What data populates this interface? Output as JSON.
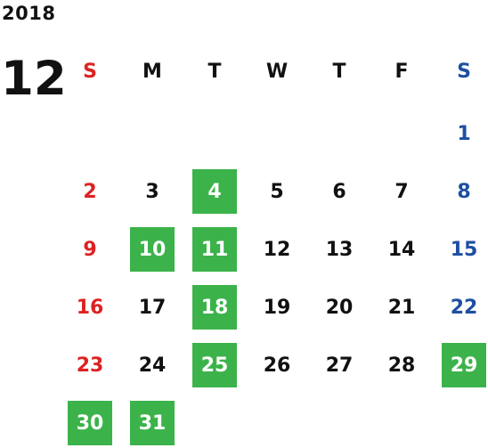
{
  "year": "2018",
  "month": "12",
  "weekdays": [
    "S",
    "M",
    "T",
    "W",
    "T",
    "F",
    "S"
  ],
  "days": [
    "1",
    "2",
    "3",
    "4",
    "5",
    "6",
    "7",
    "8",
    "9",
    "10",
    "11",
    "12",
    "13",
    "14",
    "15",
    "16",
    "17",
    "18",
    "19",
    "20",
    "21",
    "22",
    "23",
    "24",
    "25",
    "26",
    "27",
    "28",
    "29",
    "30",
    "31"
  ],
  "highlighted_days": [
    "4",
    "10",
    "11",
    "18",
    "25",
    "29",
    "30",
    "31"
  ],
  "colors": {
    "sunday": "#dd2222",
    "saturday": "#1e4fa0",
    "highlight": "#3bb34a",
    "text": "#111111"
  }
}
